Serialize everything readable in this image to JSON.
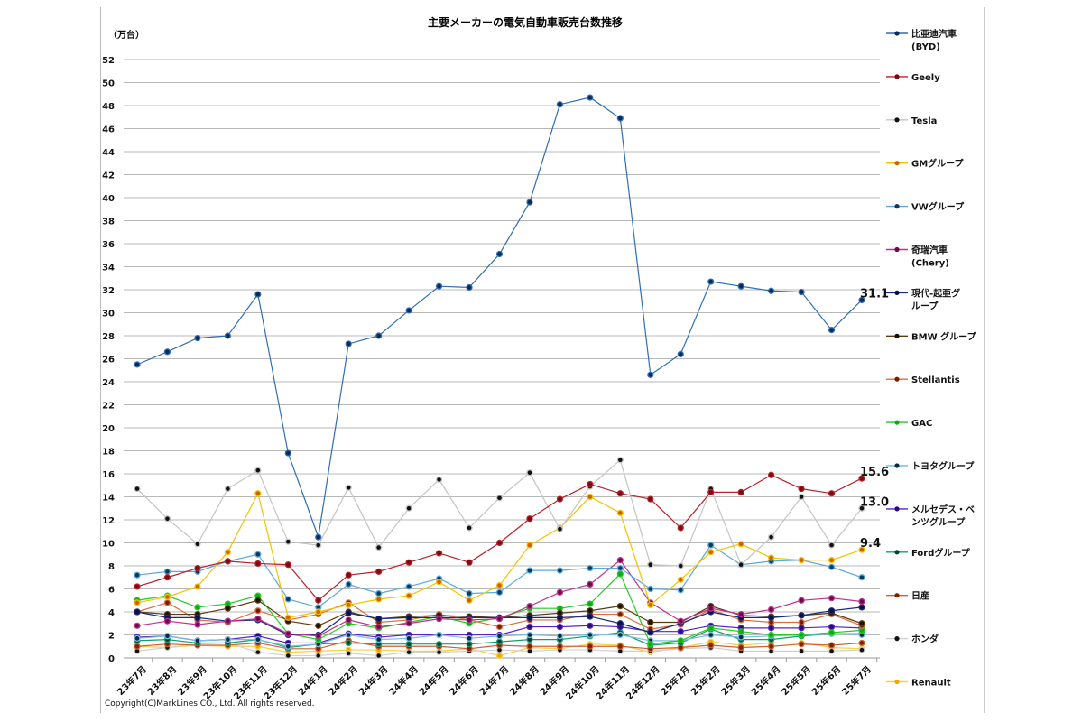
{
  "chart_data": {
    "type": "line",
    "title": "主要メーカーの電気自動車販売台数推移",
    "ylabel": "（万台）",
    "xlabel": "",
    "ylim": [
      0,
      52
    ],
    "ytick_step": 2,
    "grid": true,
    "legend_position": "right",
    "copyright": "Copyright(C)MarkLines CO., Ltd. All rights reserved.",
    "categories": [
      "23年7月",
      "23年8月",
      "23年9月",
      "23年10月",
      "23年11月",
      "23年12月",
      "24年1月",
      "24年2月",
      "24年3月",
      "24年4月",
      "24年5月",
      "24年6月",
      "24年7月",
      "24年8月",
      "24年9月",
      "24年10月",
      "24年11月",
      "24年12月",
      "25年1月",
      "25年2月",
      "25年3月",
      "25年4月",
      "25年5月",
      "25年6月",
      "25年7月"
    ],
    "series": [
      {
        "name": "比亜迪汽車\n(BYD)",
        "line": "#2f6db5",
        "dot": "#0b2a5a",
        "values": [
          25.5,
          26.6,
          27.8,
          28.0,
          31.6,
          17.8,
          10.5,
          27.3,
          28.0,
          30.2,
          32.3,
          32.2,
          35.1,
          39.6,
          48.1,
          48.7,
          46.9,
          24.6,
          26.4,
          32.7,
          32.3,
          31.9,
          31.8,
          28.5,
          31.1
        ],
        "end_label": "31.1"
      },
      {
        "name": "Geely",
        "line": "#b8202a",
        "dot": "#7a0a10",
        "values": [
          6.2,
          7.0,
          7.8,
          8.4,
          8.2,
          8.1,
          5.0,
          7.2,
          7.5,
          8.3,
          9.1,
          8.3,
          10.0,
          12.1,
          13.8,
          15.1,
          14.3,
          13.8,
          11.3,
          14.4,
          14.4,
          15.9,
          14.7,
          14.3,
          15.6
        ],
        "end_label": "15.6"
      },
      {
        "name": "Tesla",
        "line": "#c4c4c4",
        "dot": "#111111",
        "values": [
          14.7,
          12.1,
          9.9,
          14.7,
          16.3,
          10.1,
          9.8,
          14.8,
          9.6,
          13.0,
          15.5,
          11.3,
          13.9,
          16.1,
          11.2,
          14.9,
          17.2,
          8.1,
          8.0,
          14.7,
          8.1,
          10.5,
          14.0,
          9.8,
          13.0
        ],
        "end_label": "13.0"
      },
      {
        "name": "GMグループ",
        "line": "#f2c400",
        "dot": "#d06000",
        "values": [
          4.8,
          5.3,
          6.2,
          9.2,
          14.3,
          3.5,
          4.0,
          4.6,
          5.1,
          5.4,
          6.6,
          5.0,
          6.3,
          9.8,
          11.3,
          14.0,
          12.6,
          4.6,
          6.8,
          9.2,
          9.9,
          8.7,
          8.5,
          8.5,
          9.4
        ],
        "end_label": "9.4"
      },
      {
        "name": "VWグループ",
        "line": "#5aa8dc",
        "dot": "#0b3a5a",
        "values": [
          7.2,
          7.5,
          7.5,
          8.4,
          9.0,
          5.1,
          4.4,
          6.4,
          5.6,
          6.2,
          6.9,
          5.6,
          5.7,
          7.6,
          7.6,
          7.8,
          7.8,
          6.0,
          5.9,
          9.8,
          8.1,
          8.4,
          8.5,
          7.9,
          7.0
        ]
      },
      {
        "name": "奇瑞汽車\n(Chery)",
        "line": "#c0308f",
        "dot": "#6a0a4a",
        "values": [
          2.8,
          3.2,
          2.9,
          3.2,
          3.4,
          2.1,
          1.9,
          3.3,
          2.7,
          3.0,
          3.4,
          3.3,
          3.4,
          4.5,
          5.7,
          6.4,
          8.5,
          4.8,
          3.2,
          4.3,
          3.8,
          4.2,
          5.0,
          5.2,
          4.9
        ]
      },
      {
        "name": "現代-起亜グ\nループ",
        "line": "#1a2a80",
        "dot": "#0a1040",
        "values": [
          4.0,
          3.5,
          3.5,
          3.2,
          3.3,
          2.0,
          2.0,
          3.9,
          3.4,
          3.5,
          3.5,
          3.5,
          3.5,
          3.5,
          3.5,
          3.6,
          3.0,
          2.2,
          3.0,
          4.0,
          3.5,
          3.5,
          3.7,
          4.1,
          4.4
        ]
      },
      {
        "name": "BMW グループ",
        "line": "#5a3a10",
        "dot": "#1a1000",
        "values": [
          4.0,
          3.8,
          3.8,
          4.3,
          5.0,
          3.2,
          2.8,
          4.0,
          3.4,
          3.6,
          3.7,
          3.6,
          3.5,
          3.7,
          3.9,
          4.1,
          4.5,
          3.1,
          3.1,
          4.5,
          3.7,
          3.6,
          3.7,
          3.9,
          3.0
        ]
      },
      {
        "name": "Stellantis",
        "line": "#d87040",
        "dot": "#7a1a00",
        "values": [
          4.0,
          4.8,
          3.3,
          3.1,
          4.1,
          3.3,
          3.8,
          4.8,
          3.1,
          3.3,
          3.8,
          3.3,
          2.7,
          3.3,
          3.3,
          3.8,
          3.8,
          2.5,
          2.9,
          4.2,
          3.3,
          3.1,
          3.1,
          3.8,
          2.8
        ]
      },
      {
        "name": "GAC",
        "line": "#22cc22",
        "dot": "#11aa11",
        "values": [
          5.0,
          5.4,
          4.4,
          4.7,
          5.4,
          2.1,
          1.6,
          3.0,
          2.6,
          3.1,
          3.6,
          3.0,
          3.5,
          4.3,
          4.3,
          4.7,
          7.3,
          1.2,
          1.5,
          2.6,
          2.3,
          2.0,
          2.0,
          2.2,
          2.4
        ]
      },
      {
        "name": "トヨタグループ",
        "line": "#78bde4",
        "dot": "#0a2a40",
        "values": [
          1.7,
          1.9,
          1.5,
          1.6,
          1.6,
          1.0,
          1.2,
          2.0,
          1.6,
          1.7,
          2.0,
          1.7,
          1.9,
          2.0,
          1.9,
          2.0,
          2.0,
          1.5,
          1.5,
          2.0,
          1.8,
          1.9,
          2.0,
          2.1,
          2.0
        ]
      },
      {
        "name": "メルセデス・ベ\nンツグループ",
        "line": "#5522cc",
        "dot": "#2a0a80",
        "values": [
          1.8,
          1.9,
          1.5,
          1.6,
          1.9,
          1.3,
          1.3,
          2.1,
          1.8,
          2.0,
          2.0,
          2.0,
          2.0,
          2.7,
          2.7,
          2.8,
          2.7,
          2.3,
          2.3,
          2.8,
          2.6,
          2.6,
          2.6,
          2.7,
          2.6
        ]
      },
      {
        "name": "Fordグループ",
        "line": "#10a070",
        "dot": "#054030",
        "values": [
          1.5,
          1.6,
          1.3,
          1.3,
          1.6,
          0.9,
          1.2,
          1.3,
          1.2,
          1.2,
          1.2,
          1.2,
          1.4,
          1.6,
          1.6,
          1.9,
          2.2,
          1.1,
          1.3,
          2.5,
          1.6,
          1.6,
          1.9,
          2.1,
          2.1
        ]
      },
      {
        "name": "日産",
        "line": "#d06030",
        "dot": "#802000",
        "values": [
          1.0,
          1.2,
          1.1,
          1.1,
          1.3,
          0.8,
          0.8,
          1.5,
          1.0,
          1.0,
          1.0,
          0.8,
          1.1,
          1.0,
          1.0,
          1.0,
          1.0,
          0.8,
          0.9,
          1.1,
          0.9,
          1.0,
          1.2,
          1.1,
          1.3
        ]
      },
      {
        "name": "ホンダ",
        "line": "#d0d0d0",
        "dot": "#111111",
        "values": [
          0.6,
          0.9,
          1.2,
          1.3,
          0.5,
          0.2,
          0.2,
          0.4,
          0.2,
          0.5,
          0.5,
          0.6,
          0.7,
          0.6,
          0.7,
          0.7,
          0.6,
          0.6,
          0.8,
          0.9,
          0.6,
          0.6,
          0.6,
          0.6,
          0.7
        ]
      },
      {
        "name": "Renault",
        "line": "#f8d040",
        "dot": "#f0a800",
        "values": [
          1.0,
          0.9,
          1.1,
          1.0,
          1.0,
          0.5,
          0.6,
          0.7,
          0.7,
          0.6,
          0.6,
          0.8,
          0.2,
          0.9,
          0.8,
          1.2,
          1.1,
          0.5,
          0.9,
          1.4,
          1.1,
          1.3,
          1.3,
          0.9,
          0.8
        ]
      }
    ]
  }
}
